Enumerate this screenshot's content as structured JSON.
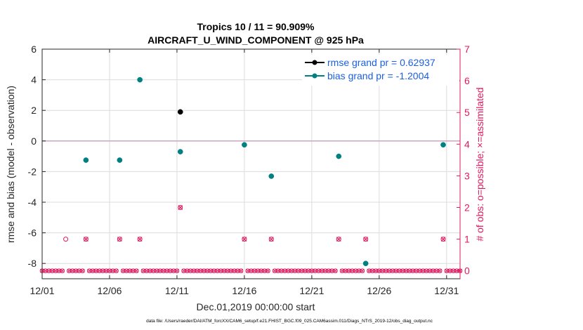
{
  "chart_data": {
    "type": "scatter",
    "title": "Tropics 10 / 11 = 90.909%",
    "subtitle": "AIRCRAFT_U_WIND_COMPONENT @ 925 hPa",
    "xlabel": "Dec.01,2019 00:00:00 start",
    "ylabel": "rmse and bias (model - observation)",
    "y2label": "# of obs: o=possible; ×=assimilated",
    "footnote": "data file: /Users/raeder/DAI/ATM_forcXX/CAM6_setup/f.e21.FHIST_BGC.f09_025.CAM6assim.011/Diags_NTrS_2019-12/obs_diag_output.nc",
    "xlim": [
      1,
      32
    ],
    "ylim": [
      -9,
      6
    ],
    "y2lim": [
      -0.25,
      7
    ],
    "x_ticks": [
      1,
      6,
      11,
      16,
      21,
      26,
      31
    ],
    "x_tick_labels": [
      "12/01",
      "12/06",
      "12/11",
      "12/16",
      "12/21",
      "12/26",
      "12/31"
    ],
    "y_ticks": [
      -8,
      -6,
      -4,
      -2,
      0,
      2,
      4,
      6
    ],
    "y_tick_labels": [
      "-8",
      "-6",
      "-4",
      "-2",
      "0",
      "2",
      "4",
      "6"
    ],
    "y2_ticks": [
      0,
      1,
      2,
      3,
      4,
      5,
      6,
      7
    ],
    "y2_tick_labels": [
      "0",
      "1",
      "2",
      "3",
      "4",
      "5",
      "6",
      "7"
    ],
    "zero_line": 0,
    "grid": true,
    "legend_position": "top-right",
    "series": [
      {
        "name": "rmse",
        "legend": "rmse grand pr = 0.62937",
        "color": "#000000",
        "legend_color": "#1a5fe0",
        "points": [
          {
            "x": 11.25,
            "y": 1.9
          }
        ]
      },
      {
        "name": "bias",
        "legend": "bias grand pr = -1.2004",
        "color": "#008080",
        "legend_color": "#1a5fe0",
        "points": [
          {
            "x": 4.25,
            "y": -1.25
          },
          {
            "x": 6.75,
            "y": -1.25
          },
          {
            "x": 8.25,
            "y": 4.0
          },
          {
            "x": 11.25,
            "y": -0.7
          },
          {
            "x": 16.0,
            "y": -0.25
          },
          {
            "x": 18.0,
            "y": -2.3
          },
          {
            "x": 23.0,
            "y": -1.0
          },
          {
            "x": 25.0,
            "y": -8.0
          },
          {
            "x": 30.75,
            "y": -0.25
          }
        ]
      }
    ],
    "obs_count": {
      "color": "#e0195f",
      "possible": [
        {
          "x": 2.75,
          "n": 1
        },
        {
          "x": 4.25,
          "n": 1
        },
        {
          "x": 6.75,
          "n": 1
        },
        {
          "x": 8.25,
          "n": 1
        },
        {
          "x": 11.25,
          "n": 2
        },
        {
          "x": 16.0,
          "n": 1
        },
        {
          "x": 18.0,
          "n": 1
        },
        {
          "x": 23.0,
          "n": 1
        },
        {
          "x": 25.0,
          "n": 1
        },
        {
          "x": 30.75,
          "n": 1
        }
      ],
      "assimilated": [
        {
          "x": 4.25,
          "n": 1
        },
        {
          "x": 6.75,
          "n": 1
        },
        {
          "x": 8.25,
          "n": 1
        },
        {
          "x": 11.25,
          "n": 2
        },
        {
          "x": 16.0,
          "n": 1
        },
        {
          "x": 18.0,
          "n": 1
        },
        {
          "x": 23.0,
          "n": 1
        },
        {
          "x": 25.0,
          "n": 1
        },
        {
          "x": 30.75,
          "n": 1
        }
      ],
      "zero_row_step": 0.25
    }
  }
}
